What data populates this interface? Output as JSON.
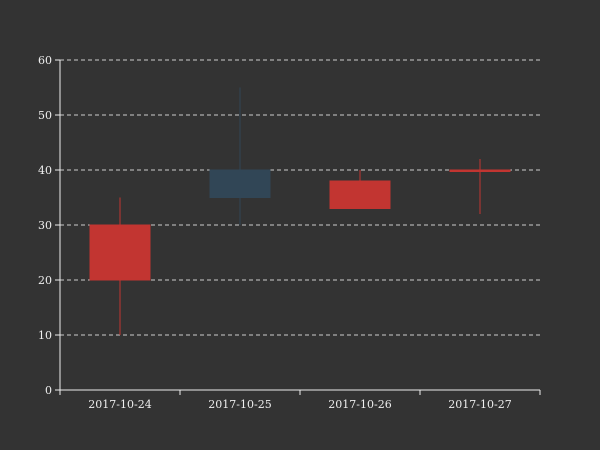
{
  "chart_data": {
    "type": "candlestick",
    "title": "",
    "xlabel": "",
    "ylabel": "",
    "categories": [
      "2017-10-24",
      "2017-10-25",
      "2017-10-26",
      "2017-10-27"
    ],
    "candles": [
      {
        "date": "2017-10-24",
        "open": 20,
        "close": 30,
        "low": 10,
        "high": 35,
        "color": "#c23531"
      },
      {
        "date": "2017-10-25",
        "open": 40,
        "close": 35,
        "low": 30,
        "high": 55,
        "color": "#314656"
      },
      {
        "date": "2017-10-26",
        "open": 33,
        "close": 38,
        "low": 33,
        "high": 40,
        "color": "#c23531"
      },
      {
        "date": "2017-10-27",
        "open": 40,
        "close": 40,
        "low": 32,
        "high": 42,
        "color": "#c23531"
      }
    ],
    "ylim": [
      0,
      60
    ],
    "yticks": [
      0,
      10,
      20,
      30,
      40,
      50,
      60
    ],
    "grid": true,
    "legend": "none",
    "colors": {
      "background": "#333333",
      "axis": "#eeeeee",
      "grid": "#cccccc",
      "up": "#c23531",
      "down": "#314656"
    }
  }
}
